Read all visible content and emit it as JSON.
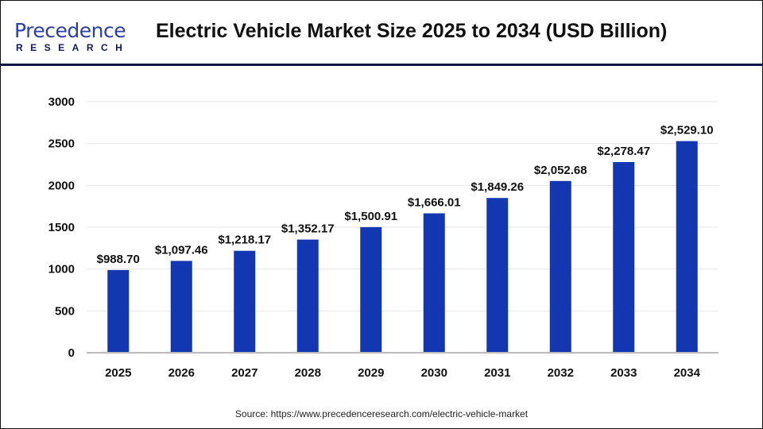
{
  "logo": {
    "line1": "Precedence",
    "line2": "RESEARCH"
  },
  "title": "Electric Vehicle Market Size 2025 to 2034 (USD Billion)",
  "source": "Source: https://www.precedenceresearch.com/electric-vehicle-market",
  "colors": {
    "bar": "#1237b0",
    "header_rule": "#0d1545",
    "grid": "#e6e6e6"
  },
  "chart_data": {
    "type": "bar",
    "title": "Electric Vehicle Market Size 2025 to 2034 (USD Billion)",
    "categories": [
      "2025",
      "2026",
      "2027",
      "2028",
      "2029",
      "2030",
      "2031",
      "2032",
      "2033",
      "2034"
    ],
    "values": [
      988.7,
      1097.46,
      1218.17,
      1352.17,
      1500.91,
      1666.01,
      1849.26,
      2052.68,
      2278.47,
      2529.1
    ],
    "data_labels": [
      "$988.70",
      "$1,097.46",
      "$1,218.17",
      "$1,352.17",
      "$1,500.91",
      "$1,666.01",
      "$1,849.26",
      "$2,052.68",
      "$2,278.47",
      "$2,529.10"
    ],
    "yticks": [
      "0",
      "500",
      "1000",
      "1500",
      "2000",
      "2500",
      "3000"
    ],
    "ylim": [
      0,
      3000
    ],
    "xlabel": "",
    "ylabel": "",
    "grid": true,
    "legend": "none"
  }
}
